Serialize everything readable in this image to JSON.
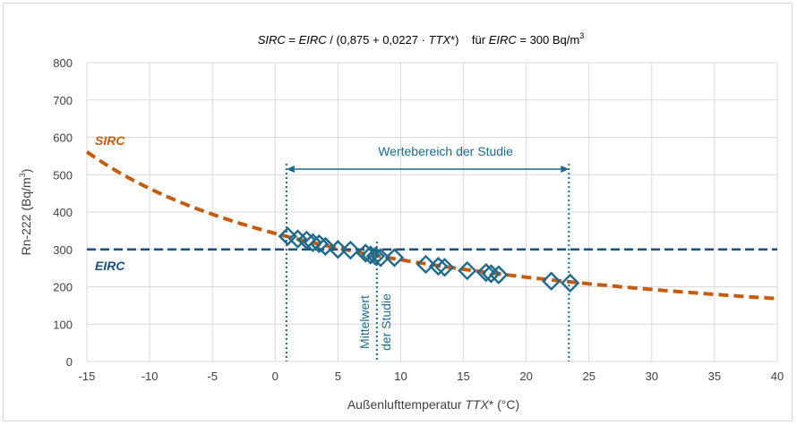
{
  "chart_data": {
    "type": "scatter",
    "title": {
      "part1": "SIRC",
      "part2": " = ",
      "part3": "EIRC",
      "part4": " / (0,875 + 0,0227 · ",
      "part5": "TTX",
      "part6": "*)    für ",
      "part7": "EIRC",
      "part8": " = 300 Bq/m",
      "part9": "3"
    },
    "xlabel": {
      "prefix": "Außenlufttemperatur ",
      "italic": "TTX",
      "suffix": "* (°C)"
    },
    "ylabel": {
      "main": "Rn-222 (Bq/m",
      "sup": "3",
      "close": ")"
    },
    "xlim": [
      -15,
      40
    ],
    "ylim": [
      0,
      800
    ],
    "xticks": [
      -15,
      -10,
      -5,
      0,
      5,
      10,
      15,
      20,
      25,
      30,
      35,
      40
    ],
    "yticks": [
      0,
      100,
      200,
      300,
      400,
      500,
      600,
      700,
      800
    ],
    "grid": true,
    "series": [
      {
        "name": "SIRC",
        "kind": "dashed-curve",
        "color": "#C55A11",
        "formula_a": 0.875,
        "formula_b": 0.0227,
        "eirc": 300,
        "x_range": [
          -15,
          40
        ]
      },
      {
        "name": "EIRC",
        "kind": "dashed-hline",
        "color": "#1F4E79",
        "y": 300
      },
      {
        "kind": "scatter",
        "marker": "diamond",
        "color": "#1F6A8A",
        "x": [
          1.0,
          1.8,
          2.5,
          3.0,
          3.5,
          4.0,
          5.0,
          6.0,
          7.2,
          7.6,
          8.0,
          8.4,
          9.5,
          12.0,
          13.0,
          13.5,
          15.3,
          16.8,
          17.2,
          17.8,
          22.0,
          23.5
        ],
        "y": [
          335,
          328,
          325,
          318,
          315,
          308,
          300,
          298,
          290,
          285,
          282,
          278,
          278,
          260,
          255,
          252,
          243,
          238,
          235,
          232,
          215,
          210
        ]
      }
    ],
    "annotations": {
      "range_label": "Wertebereich der Studie",
      "range_x": [
        0.9,
        23.4
      ],
      "range_y": 515,
      "mean_label_1": "Mittelwert",
      "mean_label_2": "der Studie",
      "mean_x": 8.1,
      "sirc_label": "SIRC",
      "eirc_label": "EIRC"
    }
  }
}
